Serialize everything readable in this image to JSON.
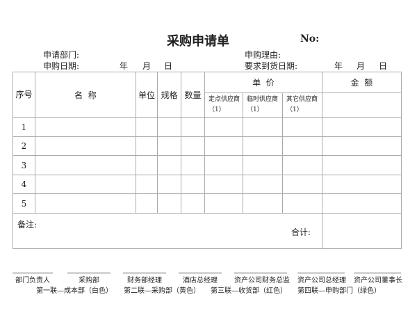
{
  "title": "采购申请单",
  "no_label": "No:",
  "info": {
    "dept": "申请部门:",
    "reason": "申购理由:",
    "apply_date": "申购日期:",
    "required_date": "要求到货日期:",
    "year": "年",
    "month": "月",
    "day": "日"
  },
  "table": {
    "headers": {
      "seq": "序号",
      "name": "名  称",
      "unit": "单位",
      "spec": "规格",
      "qty": "数量",
      "unit_price": "单  价",
      "amount": "金  额",
      "suppliers": [
        "定点供应商 （1）",
        "临时供应商 （1）",
        "其它供应商 （1）"
      ]
    },
    "rows": [
      "1",
      "2",
      "3",
      "4",
      "5"
    ],
    "remarks": "备注:",
    "total": "合计:"
  },
  "signatures": [
    "部门负责人",
    "采购部",
    "财务部经理",
    "酒店总经理",
    "资产公司财务总监",
    "资产公司总经理",
    "资产公司董事长"
  ],
  "copies": [
    "第一联—成本部（白色）",
    "第二联—采购部（黄色）",
    "第三联—收货部（红色）",
    "第四联—申购部门（绿色）"
  ]
}
